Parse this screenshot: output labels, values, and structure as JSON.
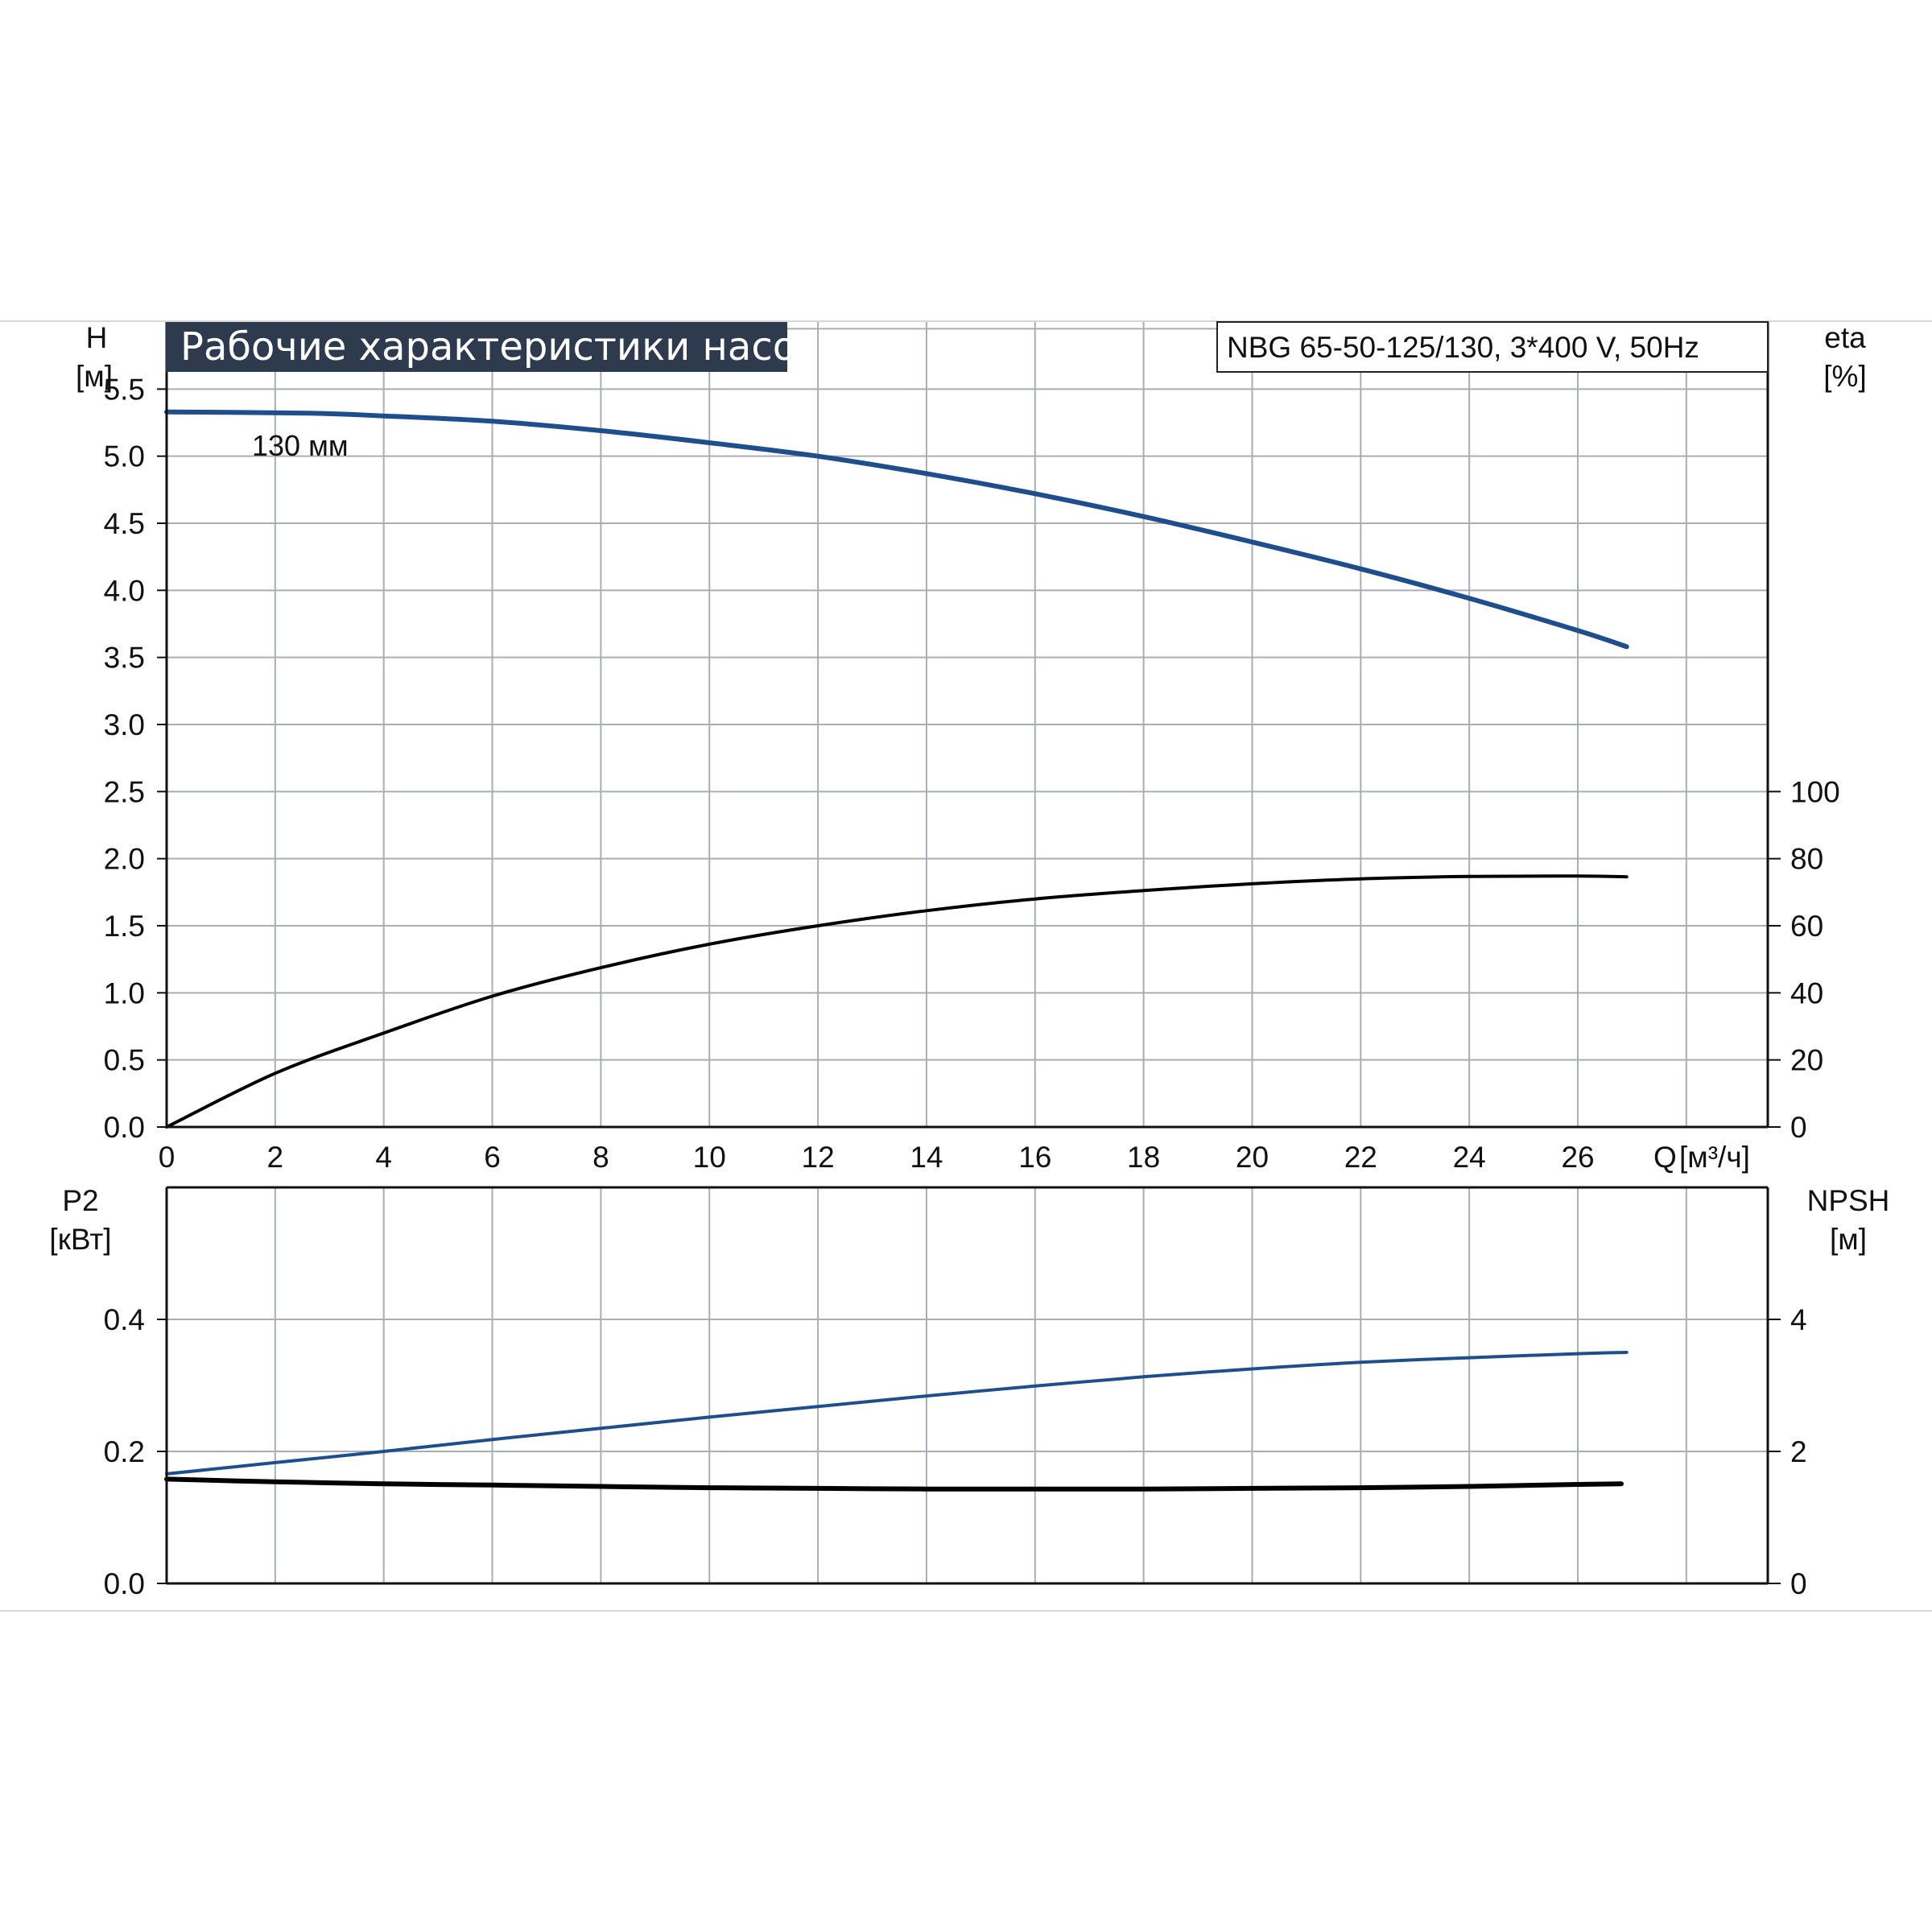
{
  "title": "Рабочие характеристики насоса",
  "model": "NBG 65-50-125/130, 3*400 V, 50Hz",
  "colors": {
    "blue": "#1f4e8c",
    "black": "#000000",
    "grid": "#a9adb6",
    "title_bg": "#2e3b4e",
    "axis": "#111111"
  },
  "chart_data": [
    {
      "type": "line",
      "name": "upper",
      "x_axis": {
        "label": "Q",
        "unit": "[м³/ч]",
        "range": [
          0,
          29.5
        ],
        "ticks": [
          0,
          2,
          4,
          6,
          8,
          10,
          12,
          14,
          16,
          18,
          20,
          22,
          24,
          26
        ],
        "tick_labels": [
          "0",
          "2",
          "4",
          "6",
          "8",
          "10",
          "12",
          "14",
          "16",
          "18",
          "20",
          "22",
          "24",
          "26"
        ]
      },
      "y_left": {
        "label": "H",
        "unit": "[м]",
        "range": [
          0,
          6.0
        ],
        "ticks": [
          0,
          0.5,
          1.0,
          1.5,
          2.0,
          2.5,
          3.0,
          3.5,
          4.0,
          4.5,
          5.0,
          5.5
        ],
        "tick_labels": [
          "0.0",
          "0.5",
          "1.0",
          "1.5",
          "2.0",
          "2.5",
          "3.0",
          "3.5",
          "4.0",
          "4.5",
          "5.0",
          "5.5"
        ]
      },
      "y_right": {
        "label": "eta",
        "unit": "[%]",
        "range": [
          0,
          240
        ],
        "ticks": [
          0,
          20,
          40,
          60,
          80,
          100
        ],
        "tick_labels": [
          "0",
          "20",
          "40",
          "60",
          "80",
          "100"
        ]
      },
      "annotations": [
        {
          "text": "130 мм",
          "x": 2.6,
          "y": 5.46
        }
      ],
      "series": [
        {
          "axis": "left",
          "color": "blue",
          "x": [
            0,
            2.6,
            4,
            6,
            8,
            10,
            12,
            14,
            16,
            18,
            20,
            22,
            24,
            26,
            26.9
          ],
          "y": [
            5.33,
            5.32,
            5.3,
            5.26,
            5.19,
            5.1,
            5.0,
            4.87,
            4.72,
            4.55,
            4.36,
            4.16,
            3.94,
            3.7,
            3.58
          ]
        },
        {
          "axis": "right",
          "color": "black",
          "x": [
            0,
            2,
            4,
            6,
            8,
            10,
            12,
            14,
            16,
            18,
            20,
            22,
            24,
            26,
            26.9
          ],
          "y": [
            0,
            16,
            28,
            39,
            47.5,
            54.5,
            60,
            64.5,
            68,
            70.5,
            72.5,
            74,
            74.7,
            74.8,
            74.6
          ]
        }
      ],
      "grid": true
    },
    {
      "type": "line",
      "name": "lower",
      "x_axis": {
        "range": [
          0,
          29.5
        ],
        "ticks": [
          0,
          2,
          4,
          6,
          8,
          10,
          12,
          14,
          16,
          18,
          20,
          22,
          24,
          26
        ]
      },
      "y_left": {
        "label": "P2",
        "unit": "[кВт]",
        "range": [
          0,
          0.6
        ],
        "ticks": [
          0,
          0.2,
          0.4
        ],
        "tick_labels": [
          "0.0",
          "0.2",
          "0.4"
        ]
      },
      "y_right": {
        "label": "NPSH",
        "unit": "[м]",
        "range": [
          0,
          6
        ],
        "ticks": [
          0,
          2,
          4
        ],
        "tick_labels": [
          "0",
          "2",
          "4"
        ]
      },
      "series": [
        {
          "axis": "left",
          "color": "blue",
          "x": [
            0,
            2,
            4,
            6,
            8,
            10,
            12,
            14,
            16,
            18,
            20,
            22,
            24,
            26,
            26.9
          ],
          "y": [
            0.166,
            0.183,
            0.2,
            0.218,
            0.235,
            0.252,
            0.268,
            0.284,
            0.299,
            0.313,
            0.325,
            0.335,
            0.342,
            0.348,
            0.35
          ]
        },
        {
          "axis": "right",
          "color": "black",
          "x": [
            0,
            2,
            4,
            6,
            8,
            10,
            12,
            14,
            16,
            18,
            20,
            22,
            24,
            26,
            26.8
          ],
          "y": [
            1.58,
            1.54,
            1.51,
            1.49,
            1.47,
            1.45,
            1.44,
            1.43,
            1.43,
            1.43,
            1.44,
            1.45,
            1.47,
            1.5,
            1.51
          ]
        }
      ],
      "grid": true
    }
  ]
}
